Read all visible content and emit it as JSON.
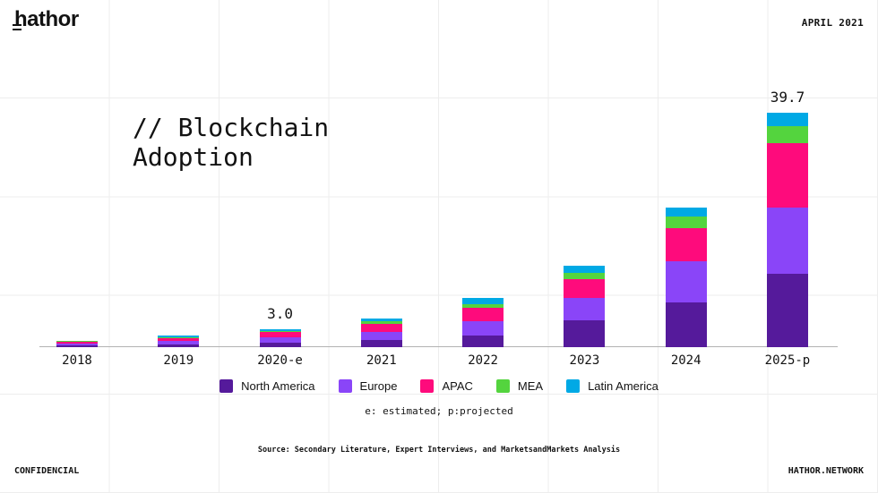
{
  "header": {
    "logo_text": "hathor",
    "date": "APRIL 2021"
  },
  "title": {
    "text": "// Blockchain\nAdoption"
  },
  "chart_data": {
    "type": "bar",
    "stacked": true,
    "title": "// Blockchain Adoption",
    "xlabel": "",
    "ylabel": "",
    "ylim": [
      0,
      42
    ],
    "grid": "background design grid only, no y-axis ticks",
    "legend_position": "bottom",
    "categories": [
      "2018",
      "2019",
      "2020-e",
      "2021",
      "2022",
      "2023",
      "2024",
      "2025-p"
    ],
    "series": [
      {
        "name": "North America",
        "color": "#551a9b",
        "values": [
          0.3,
          0.45,
          0.75,
          1.2,
          1.9,
          4.6,
          7.6,
          12.4
        ]
      },
      {
        "name": "Europe",
        "color": "#8a45f8",
        "values": [
          0.35,
          0.55,
          0.9,
          1.4,
          2.5,
          3.8,
          7.0,
          11.2
        ]
      },
      {
        "name": "APAC",
        "color": "#fe0b7c",
        "values": [
          0.3,
          0.55,
          0.9,
          1.4,
          2.2,
          3.1,
          5.6,
          10.9
        ]
      },
      {
        "name": "MEA",
        "color": "#54d43e",
        "values": [
          0.1,
          0.15,
          0.25,
          0.4,
          0.7,
          1.1,
          1.9,
          2.9
        ]
      },
      {
        "name": "Latin America",
        "color": "#00a9e5",
        "values": [
          0.05,
          0.2,
          0.2,
          0.4,
          1.0,
          1.2,
          1.5,
          2.3
        ]
      }
    ],
    "value_labels": [
      {
        "category": "2020-e",
        "text": "3.0"
      },
      {
        "category": "2025-p",
        "text": "39.7"
      }
    ],
    "totals": [
      1.1,
      1.9,
      3.0,
      4.8,
      8.3,
      13.8,
      23.6,
      39.7
    ]
  },
  "footnote": "e: estimated; p:projected",
  "source": "Source: Secondary Literature, Expert Interviews, and MarketsandMarkets Analysis",
  "footer": {
    "left": "CONFIDENCIAL",
    "right": "HATHOR.NETWORK"
  },
  "colors": {
    "background": "#ffffff",
    "grid_line": "#ededed",
    "axis_line": "#b2b2b2",
    "text": "#121212"
  }
}
